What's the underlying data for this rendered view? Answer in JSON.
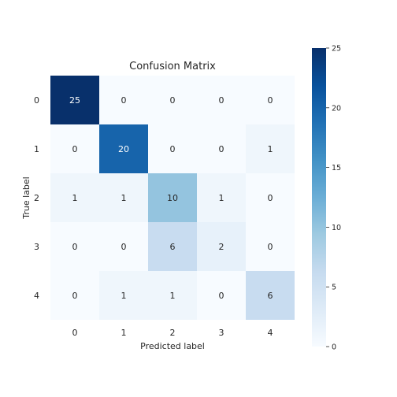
{
  "chart_data": {
    "type": "heatmap",
    "title": "Confusion Matrix",
    "xlabel": "Predicted label",
    "ylabel": "True label",
    "x_categories": [
      "0",
      "1",
      "2",
      "3",
      "4"
    ],
    "y_categories": [
      "0",
      "1",
      "2",
      "3",
      "4"
    ],
    "values": [
      [
        25,
        0,
        0,
        0,
        0
      ],
      [
        0,
        20,
        0,
        0,
        1
      ],
      [
        1,
        1,
        10,
        1,
        0
      ],
      [
        0,
        0,
        6,
        2,
        0
      ],
      [
        0,
        1,
        1,
        0,
        6
      ]
    ],
    "colormap": "Blues",
    "colorbar": {
      "min": 0,
      "max": 25,
      "ticks": [
        "0",
        "5",
        "10",
        "15",
        "20",
        "25"
      ]
    },
    "grid": false
  }
}
